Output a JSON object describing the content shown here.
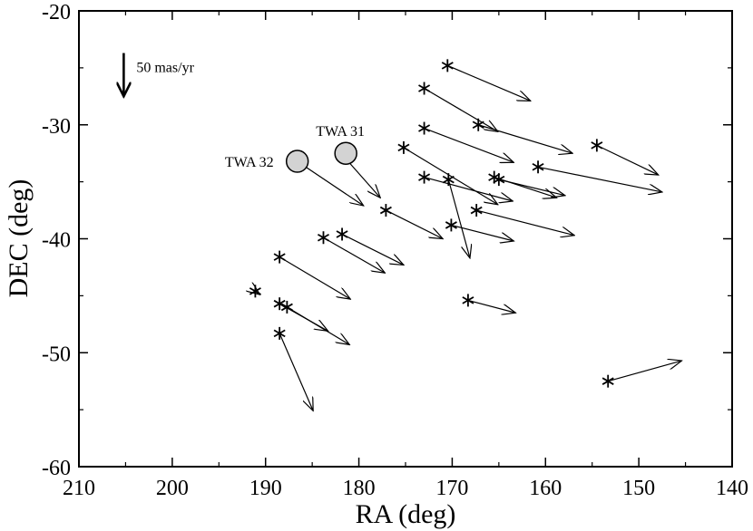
{
  "chart_data": {
    "type": "scatter",
    "xlabel": "RA (deg)",
    "ylabel": "DEC (deg)",
    "xlim": [
      210,
      140
    ],
    "ylim": [
      -60,
      -20
    ],
    "x_ticks": [
      210,
      200,
      190,
      180,
      170,
      160,
      150,
      140
    ],
    "y_ticks": [
      -20,
      -30,
      -40,
      -50,
      -60
    ],
    "grid": false,
    "legend": {
      "text": "50 mas/yr",
      "arrow_ra": 205.2,
      "arrow_dec_start": -23.7,
      "arrow_dec_end": -27.5
    },
    "series": [
      {
        "name": "stars_with_proper_motion",
        "marker": "asterisk",
        "points": [
          {
            "ra": 170.5,
            "dec": -24.8,
            "ra_end": 161.6,
            "dec_end": -27.9
          },
          {
            "ra": 173.0,
            "dec": -26.8,
            "ra_end": 165.1,
            "dec_end": -30.6
          },
          {
            "ra": 173.0,
            "dec": -30.3,
            "ra_end": 163.4,
            "dec_end": -33.3
          },
          {
            "ra": 167.2,
            "dec": -30.0,
            "ra_end": 157.1,
            "dec_end": -32.5
          },
          {
            "ra": 154.5,
            "dec": -31.8,
            "ra_end": 147.9,
            "dec_end": -34.4
          },
          {
            "ra": 175.2,
            "dec": -32.0,
            "ra_end": 165.1,
            "dec_end": -37.0
          },
          {
            "ra": 181.7,
            "dec": -32.7,
            "ra_end": 177.7,
            "dec_end": -36.4
          },
          {
            "ra": 160.8,
            "dec": -33.7,
            "ra_end": 147.5,
            "dec_end": -35.9
          },
          {
            "ra": 173.0,
            "dec": -34.6,
            "ra_end": 163.5,
            "dec_end": -36.7
          },
          {
            "ra": 170.4,
            "dec": -34.8,
            "ra_end": 168.1,
            "dec_end": -41.7
          },
          {
            "ra": 165.5,
            "dec": -34.6,
            "ra_end": 158.8,
            "dec_end": -36.4
          },
          {
            "ra": 165.0,
            "dec": -34.8,
            "ra_end": 157.9,
            "dec_end": -36.2
          },
          {
            "ra": 177.1,
            "dec": -37.5,
            "ra_end": 171.0,
            "dec_end": -40.0
          },
          {
            "ra": 167.4,
            "dec": -37.5,
            "ra_end": 156.9,
            "dec_end": -39.7
          },
          {
            "ra": 170.1,
            "dec": -38.8,
            "ra_end": 163.4,
            "dec_end": -40.2
          },
          {
            "ra": 181.8,
            "dec": -39.6,
            "ra_end": 175.2,
            "dec_end": -42.3
          },
          {
            "ra": 183.8,
            "dec": -39.9,
            "ra_end": 177.2,
            "dec_end": -43.0
          },
          {
            "ra": 188.5,
            "dec": -41.6,
            "ra_end": 180.9,
            "dec_end": -45.3
          },
          {
            "ra": 191.1,
            "dec": -44.6,
            "ra_end": 190.6,
            "dec_end": -44.9
          },
          {
            "ra": 188.5,
            "dec": -45.7,
            "ra_end": 183.3,
            "dec_end": -48.1
          },
          {
            "ra": 187.7,
            "dec": -46.0,
            "ra_end": 181.0,
            "dec_end": -49.3
          },
          {
            "ra": 168.3,
            "dec": -45.4,
            "ra_end": 163.2,
            "dec_end": -46.5
          },
          {
            "ra": 188.5,
            "dec": -48.3,
            "ra_end": 184.9,
            "dec_end": -55.1
          },
          {
            "ra": 153.3,
            "dec": -52.5,
            "ra_end": 145.4,
            "dec_end": -50.7
          }
        ]
      },
      {
        "name": "labeled_sources",
        "marker": "circle",
        "points": [
          {
            "label": "TWA 32",
            "ra": 186.6,
            "dec": -33.2,
            "ra_end": 179.5,
            "dec_end": -37.1
          },
          {
            "label": "TWA 31",
            "ra": 181.4,
            "dec": -32.5,
            "ra_end": 180.6,
            "dec_end": -33.0
          }
        ]
      }
    ]
  }
}
